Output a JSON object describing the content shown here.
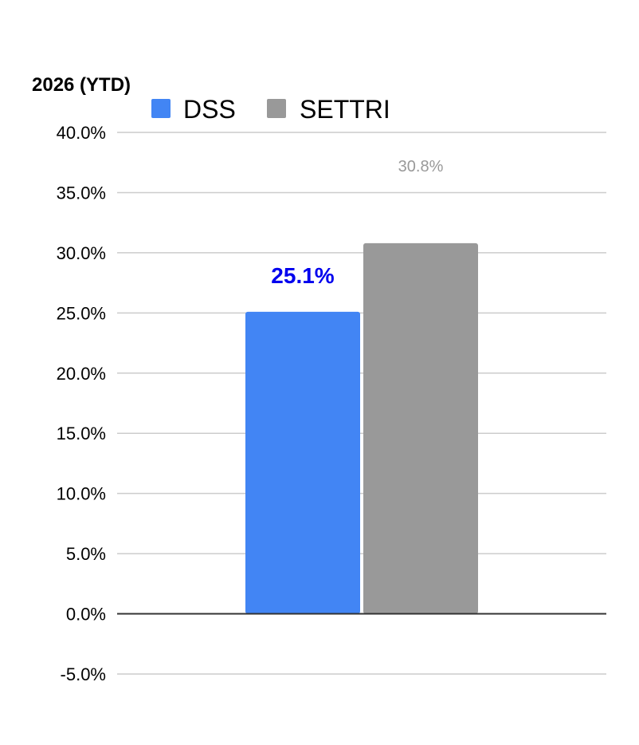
{
  "chart_data": {
    "type": "bar",
    "title": "2026 (YTD)",
    "categories": [
      ""
    ],
    "series": [
      {
        "name": "DSS",
        "values": [
          25.1
        ],
        "color": "#4285f4",
        "value_label": "25.1%",
        "label_color": "#0000ee",
        "label_bold": true
      },
      {
        "name": "SETTRI",
        "values": [
          30.8
        ],
        "color": "#999999",
        "value_label": "30.8%",
        "label_color": "#999999",
        "label_bold": false
      }
    ],
    "ylim": [
      -5,
      40
    ],
    "yticks": [
      40,
      35,
      30,
      25,
      20,
      15,
      10,
      5,
      0,
      -5
    ],
    "ytick_labels": [
      "40.0%",
      "35.0%",
      "30.0%",
      "25.0%",
      "20.0%",
      "15.0%",
      "10.0%",
      "5.0%",
      "0.0%",
      "-5.0%"
    ],
    "grid": true,
    "legend_position": "top",
    "xlabel": "",
    "ylabel": ""
  }
}
